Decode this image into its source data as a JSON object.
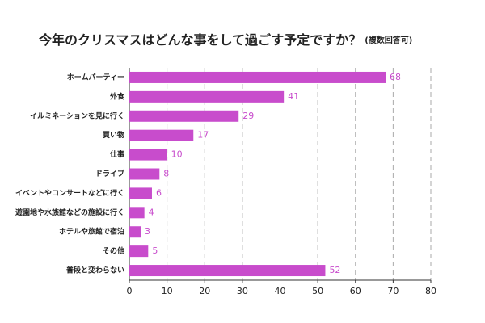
{
  "chart_data": {
    "type": "bar",
    "orientation": "horizontal",
    "title": "今年のクリスマスはどんな事をして過ごす予定ですか？",
    "subtitle": "(複数回答可)",
    "categories": [
      "ホームパーティー",
      "外食",
      "イルミネーションを見に行く",
      "買い物",
      "仕事",
      "ドライブ",
      "イベントやコンサートなどに行く",
      "遊園地や水族館などの施設に行く",
      "ホテルや旅館で宿泊",
      "その他",
      "普段と変わらない"
    ],
    "values": [
      68,
      41,
      29,
      17,
      10,
      8,
      6,
      4,
      3,
      5,
      52
    ],
    "color": "#c84ccc",
    "xlim": [
      0,
      80
    ],
    "xticks": [
      0,
      10,
      20,
      30,
      40,
      50,
      60,
      70,
      80
    ],
    "grid": true
  }
}
